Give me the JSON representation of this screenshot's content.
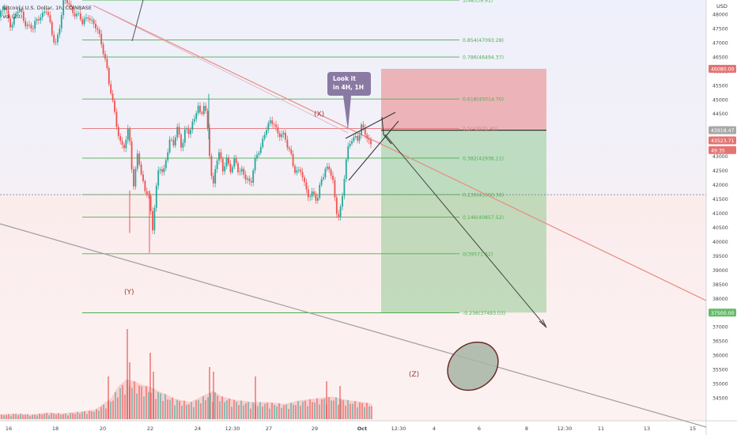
{
  "header": {
    "symbol_line": "Bitcoin / U.S. Dollar, 1h, COINBASE",
    "volume_label": "Vol (20)",
    "currency": "USD"
  },
  "chart_data": {
    "type": "candlestick",
    "y_ticks": [
      48000,
      47500,
      47000,
      46500,
      46000,
      45500,
      45000,
      44500,
      44000,
      43500,
      43000,
      42500,
      42000,
      41500,
      41000,
      40500,
      40000,
      39500,
      39000,
      38500,
      38000,
      37500,
      37000,
      36500,
      36000,
      35500,
      35000,
      34500
    ],
    "ylim": [
      34400,
      48400
    ],
    "x_ticks": [
      "16",
      "18",
      "20",
      "22",
      "24",
      "12:30",
      "27",
      "29",
      "Oct",
      "12:30",
      "4",
      "6",
      "8",
      "12:30",
      "11",
      "13",
      "15"
    ],
    "price_path": [
      [
        0,
        47900
      ],
      [
        6,
        48200
      ],
      [
        14,
        47700
      ],
      [
        24,
        48100
      ],
      [
        32,
        47800
      ],
      [
        42,
        47400
      ],
      [
        50,
        48000
      ],
      [
        58,
        48200
      ],
      [
        65,
        47300
      ],
      [
        70,
        47000
      ],
      [
        75,
        47600
      ],
      [
        80,
        48300
      ],
      [
        86,
        48400
      ],
      [
        95,
        48100
      ],
      [
        104,
        47600
      ],
      [
        112,
        48100
      ],
      [
        118,
        47600
      ],
      [
        124,
        47300
      ],
      [
        130,
        46900
      ],
      [
        134,
        46400
      ],
      [
        138,
        45500
      ],
      [
        143,
        44700
      ],
      [
        147,
        44200
      ],
      [
        152,
        43600
      ],
      [
        158,
        43300
      ],
      [
        163,
        43900
      ],
      [
        166,
        42800
      ],
      [
        169,
        42000
      ],
      [
        174,
        43300
      ],
      [
        179,
        42100
      ],
      [
        184,
        41700
      ],
      [
        189,
        41600
      ],
      [
        193,
        40600
      ],
      [
        197,
        41600
      ],
      [
        201,
        42600
      ],
      [
        206,
        42300
      ],
      [
        210,
        43100
      ],
      [
        215,
        43600
      ],
      [
        220,
        43300
      ],
      [
        225,
        44000
      ],
      [
        230,
        43400
      ],
      [
        235,
        44100
      ],
      [
        240,
        43600
      ],
      [
        245,
        44300
      ],
      [
        250,
        44900
      ],
      [
        254,
        44500
      ],
      [
        258,
        44700
      ],
      [
        262,
        44100
      ],
      [
        265,
        43100
      ],
      [
        269,
        41900
      ],
      [
        273,
        42900
      ],
      [
        277,
        43000
      ],
      [
        282,
        42400
      ],
      [
        287,
        43000
      ],
      [
        292,
        42600
      ],
      [
        297,
        42800
      ],
      [
        302,
        42300
      ],
      [
        307,
        42600
      ],
      [
        312,
        42300
      ],
      [
        317,
        41900
      ],
      [
        322,
        42700
      ],
      [
        327,
        43300
      ],
      [
        332,
        43600
      ],
      [
        337,
        43900
      ],
      [
        342,
        44100
      ],
      [
        347,
        44300
      ],
      [
        352,
        43800
      ],
      [
        357,
        43700
      ],
      [
        362,
        43400
      ],
      [
        367,
        43300
      ],
      [
        372,
        42600
      ],
      [
        377,
        42300
      ],
      [
        381,
        42400
      ],
      [
        386,
        42000
      ],
      [
        391,
        41700
      ],
      [
        396,
        41600
      ],
      [
        401,
        41300
      ],
      [
        406,
        42300
      ],
      [
        411,
        42600
      ],
      [
        416,
        42500
      ],
      [
        421,
        42000
      ],
      [
        425,
        41200
      ],
      [
        429,
        41000
      ],
      [
        433,
        41600
      ],
      [
        437,
        42600
      ],
      [
        441,
        43300
      ],
      [
        445,
        43700
      ],
      [
        449,
        43800
      ],
      [
        453,
        43600
      ],
      [
        457,
        43900
      ],
      [
        462,
        43800
      ],
      [
        467,
        43600
      ],
      [
        471,
        43500
      ]
    ],
    "volume_path": [
      [
        0,
        0.05
      ],
      [
        20,
        0.06
      ],
      [
        40,
        0.05
      ],
      [
        60,
        0.07
      ],
      [
        80,
        0.06
      ],
      [
        100,
        0.08
      ],
      [
        120,
        0.1
      ],
      [
        140,
        0.22
      ],
      [
        150,
        0.35
      ],
      [
        160,
        0.42
      ],
      [
        170,
        0.4
      ],
      [
        180,
        0.36
      ],
      [
        190,
        0.34
      ],
      [
        200,
        0.3
      ],
      [
        210,
        0.26
      ],
      [
        220,
        0.22
      ],
      [
        240,
        0.18
      ],
      [
        260,
        0.26
      ],
      [
        270,
        0.3
      ],
      [
        280,
        0.24
      ],
      [
        300,
        0.2
      ],
      [
        320,
        0.18
      ],
      [
        340,
        0.18
      ],
      [
        360,
        0.16
      ],
      [
        380,
        0.2
      ],
      [
        400,
        0.22
      ],
      [
        420,
        0.24
      ],
      [
        440,
        0.2
      ],
      [
        460,
        0.18
      ],
      [
        470,
        0.16
      ]
    ],
    "volume_spikes": [
      [
        136,
        0.45
      ],
      [
        160,
        0.95
      ],
      [
        163,
        0.6
      ],
      [
        189,
        0.7
      ],
      [
        193,
        0.5
      ],
      [
        264,
        0.55
      ],
      [
        269,
        0.5
      ],
      [
        322,
        0.45
      ],
      [
        412,
        0.4
      ],
      [
        429,
        0.35
      ]
    ],
    "fib_levels": [
      {
        "label": "1(48539.91)",
        "price": 48500
      },
      {
        "label": "0.854(47093.28)",
        "price": 47093
      },
      {
        "label": "0.786(46494.37)",
        "price": 46494
      },
      {
        "label": "0.618(45014.70)",
        "price": 45015
      },
      {
        "label": "0.5(43975.40)",
        "price": 43975
      },
      {
        "label": "0.382(42936.11)",
        "price": 42936
      },
      {
        "label": "0.236(41650.30)",
        "price": 41650
      },
      {
        "label": "0.146(40857.52)",
        "price": 40858
      },
      {
        "label": "0(39571.62)",
        "price": 39572
      },
      {
        "label": "-0.236(37493.03)",
        "price": 37493
      }
    ],
    "position": {
      "entry": 43918.47,
      "stop": 46080.0,
      "target": 37500.0
    },
    "price_badges": [
      {
        "text": "46080.00",
        "price": 46080,
        "color": "#e57373"
      },
      {
        "text": "43918.47",
        "price": 43918,
        "color": "#a8a8a8"
      },
      {
        "text": "43523.71",
        "price": 43560,
        "color": "#e57373"
      },
      {
        "text": "49:35",
        "price": 43220,
        "color": "#e57373"
      },
      {
        "text": "37500.00",
        "price": 37500,
        "color": "#66bb6a"
      }
    ],
    "annotations": [
      {
        "text": "(X)",
        "kind": "wave"
      },
      {
        "text": "(Y)",
        "kind": "wave"
      },
      {
        "text": "(Z)",
        "kind": "wave"
      }
    ],
    "callout": {
      "line1": "Look it",
      "line2": "in 4H, 1H"
    }
  },
  "colors": {
    "up": "#26a69a",
    "down": "#ef5350",
    "fib": "#4caf50",
    "fib_key": "#e57373",
    "stop_zone": "rgba(229,115,115,0.48)",
    "target_zone": "rgba(102,187,106,0.38)",
    "trendline": "#e98d84",
    "channel": "#9e9e9e",
    "arrow": "#555555",
    "wave_text": "#9c3a3a",
    "callout_bg": "#8a7aa3",
    "ellipse_fill": "#a6b5a6",
    "ellipse_stroke": "#6e2a2a"
  }
}
